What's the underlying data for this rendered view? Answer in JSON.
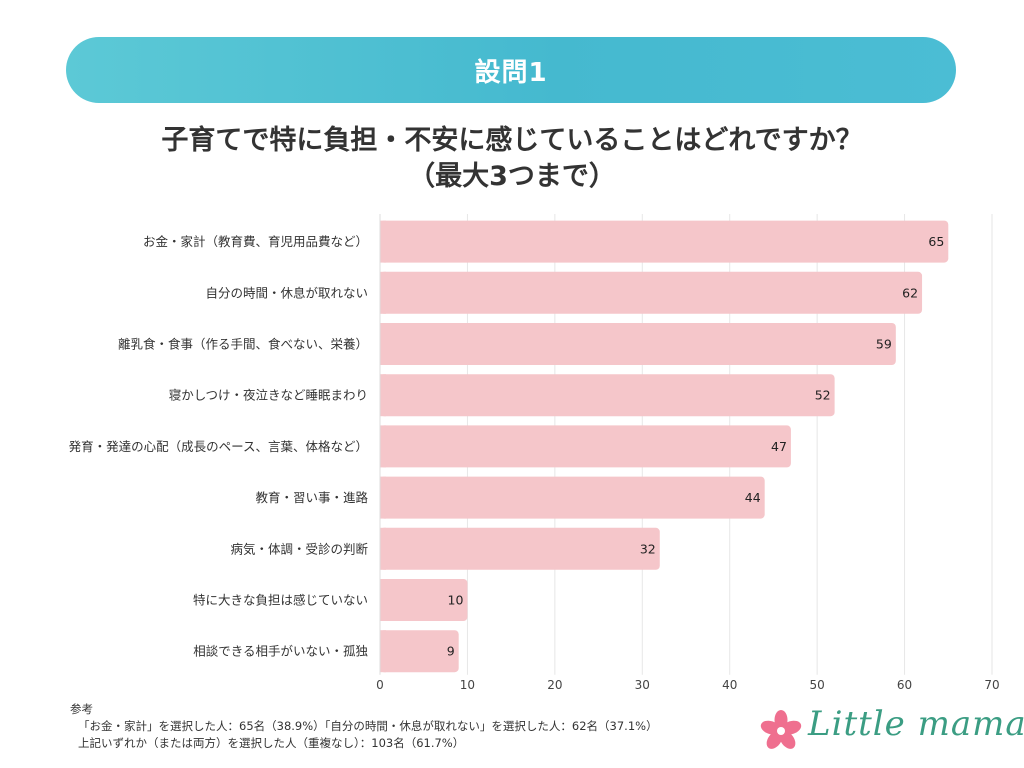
{
  "header": {
    "label": "設問1"
  },
  "question": {
    "line1": "子育てで特に負担・不安に感じていることはどれですか？",
    "line2": "（最大3つまで）"
  },
  "chart_data": {
    "type": "bar",
    "orientation": "horizontal",
    "categories": [
      "お金・家計（教育費、育児用品費など）",
      "自分の時間・休息が取れない",
      "離乳食・食事（作る手間、食べない、栄養）",
      "寝かしつけ・夜泣きなど睡眠まわり",
      "発育・発達の心配（成長のペース、言葉、体格など）",
      "教育・習い事・進路",
      "病気・体調・受診の判断",
      "特に大きな負担は感じていない",
      "相談できる相手がいない・孤独"
    ],
    "values": [
      65,
      62,
      59,
      52,
      47,
      44,
      32,
      10,
      9
    ],
    "xlim": [
      0,
      70
    ],
    "xticks": [
      0,
      10,
      20,
      30,
      40,
      50,
      60,
      70
    ],
    "grid": true,
    "bar_color": "#f5c6ca",
    "data_labels": true
  },
  "notes": {
    "heading": "参考",
    "line1": "「お金・家計」を選択した人：65名（38.9%）「自分の時間・休息が取れない」を選択した人：62名（37.1%）",
    "line2": "上記いずれか（または両方）を選択した人（重複なし）：103名（61.7%）"
  },
  "logo": {
    "text": "Little mama",
    "icon": "flower-icon",
    "colors": {
      "flower": "#ef6f8f",
      "text": "#3b9d83"
    }
  },
  "colors": {
    "banner": "#4bbdd4",
    "bar": "#f5c6ca",
    "grid": "#e6e6e6"
  }
}
